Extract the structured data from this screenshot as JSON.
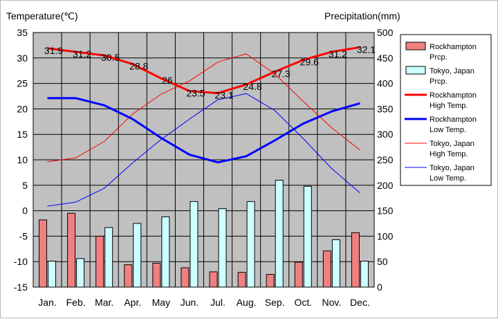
{
  "chart_data": {
    "type": "bar+line",
    "categories": [
      "Jan.",
      "Feb.",
      "Mar.",
      "Apr.",
      "May",
      "Jun.",
      "Jul.",
      "Aug.",
      "Sep.",
      "Oct.",
      "Nov.",
      "Dec."
    ],
    "left_axis": {
      "label": "Temperature(℃)",
      "min": -15,
      "max": 35,
      "ticks": [
        "35",
        "30",
        "25",
        "20",
        "15",
        "10",
        "5",
        "0",
        "-5",
        "-10",
        "-15"
      ]
    },
    "right_axis": {
      "label": "Precipitation(mm)",
      "min": 0,
      "max": 500,
      "ticks": [
        "500",
        "450",
        "400",
        "350",
        "300",
        "250",
        "200",
        "150",
        "100",
        "50",
        "0"
      ]
    },
    "series": [
      {
        "name": "Rockhampton Prcp.",
        "kind": "bar",
        "axis": "right",
        "color": "#f08080",
        "values": [
          132,
          145,
          100,
          44,
          47,
          38,
          30,
          29,
          25,
          49,
          71,
          107
        ]
      },
      {
        "name": "Tokyo, Japan Prcp.",
        "kind": "bar",
        "axis": "right",
        "color": "#ccffff",
        "values": [
          51,
          56,
          117,
          125,
          138,
          168,
          154,
          168,
          210,
          198,
          93,
          51
        ]
      },
      {
        "name": "Rockhampton High Temp.",
        "kind": "line",
        "axis": "left",
        "color": "#ff0000",
        "width": "thick",
        "values": [
          31.9,
          31.2,
          30.5,
          28.8,
          26,
          23.5,
          23.1,
          24.8,
          27.3,
          29.6,
          31.2,
          32.1
        ],
        "labels": [
          "31.9",
          "31.2",
          "30.5",
          "28.8",
          "26",
          "23.5",
          "23.1",
          "24.8",
          "27.3",
          "29.6",
          "31.2",
          "32.1"
        ]
      },
      {
        "name": "Rockhampton Low Temp.",
        "kind": "line",
        "axis": "left",
        "color": "#0000ff",
        "width": "thick",
        "values": [
          22.1,
          22.1,
          20.7,
          18.0,
          14.3,
          11.0,
          9.5,
          10.7,
          13.8,
          17.1,
          19.5,
          21.1
        ]
      },
      {
        "name": "Tokyo, Japan High Temp.",
        "kind": "line",
        "axis": "left",
        "color": "#ff0000",
        "width": "thin",
        "values": [
          9.6,
          10.4,
          13.6,
          19.0,
          22.9,
          25.5,
          29.2,
          30.8,
          26.9,
          21.5,
          16.3,
          11.9
        ]
      },
      {
        "name": "Tokyo, Japan Low Temp.",
        "kind": "line",
        "axis": "left",
        "color": "#0000ff",
        "width": "thin",
        "values": [
          0.9,
          1.7,
          4.4,
          9.4,
          14.0,
          18.0,
          21.8,
          23.0,
          19.7,
          14.2,
          8.3,
          3.5
        ]
      }
    ],
    "legend_entries": [
      {
        "series": 0,
        "lines": [
          "Rockhampton",
          "Prcp."
        ]
      },
      {
        "series": 1,
        "lines": [
          "Tokyo, Japan",
          "Prcp."
        ]
      },
      {
        "series": 2,
        "lines": [
          "Rockhampton",
          "High Temp."
        ]
      },
      {
        "series": 3,
        "lines": [
          "Rockhampton",
          "Low Temp."
        ]
      },
      {
        "series": 4,
        "lines": [
          "Tokyo, Japan",
          "High Temp."
        ]
      },
      {
        "series": 5,
        "lines": [
          "Tokyo, Japan",
          "Low Temp."
        ]
      }
    ],
    "legend_placement": "right",
    "plot_background": "#c0c0c0",
    "grid": true
  }
}
